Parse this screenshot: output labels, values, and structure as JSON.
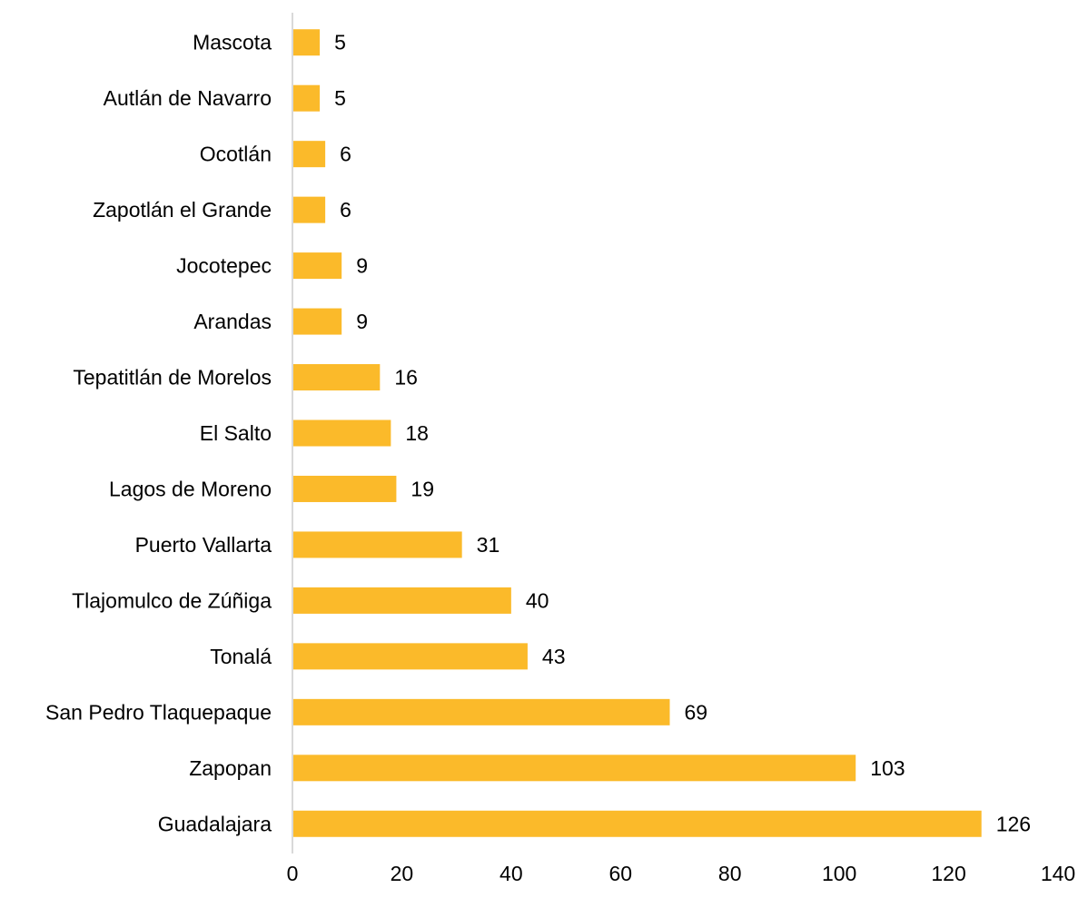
{
  "chart_data": {
    "type": "bar",
    "orientation": "horizontal",
    "title": "",
    "xlabel": "",
    "ylabel": "",
    "categories": [
      "Mascota",
      "Autlán de Navarro",
      "Ocotlán",
      "Zapotlán el Grande",
      "Jocotepec",
      "Arandas",
      "Tepatitlán de Morelos",
      "El Salto",
      "Lagos de Moreno",
      "Puerto Vallarta",
      "Tlajomulco de Zúñiga",
      "Tonalá",
      "San Pedro Tlaquepaque",
      "Zapopan",
      "Guadalajara"
    ],
    "values": [
      5,
      5,
      6,
      6,
      9,
      9,
      16,
      18,
      19,
      31,
      40,
      43,
      69,
      103,
      126
    ],
    "value_labels": [
      "5",
      "5",
      "6",
      "6",
      "9",
      "9",
      "16",
      "18",
      "19",
      "31",
      "40",
      "43",
      "69",
      "103",
      "126"
    ],
    "xlim": [
      0,
      140
    ],
    "xticks": [
      0,
      20,
      40,
      60,
      80,
      100,
      120,
      140
    ],
    "xtick_labels": [
      "0",
      "20",
      "40",
      "60",
      "80",
      "100",
      "120",
      "140"
    ],
    "grid": false,
    "legend": "none",
    "bar_color": "#FBBA2A",
    "axis_color": "#D9D9D9"
  }
}
